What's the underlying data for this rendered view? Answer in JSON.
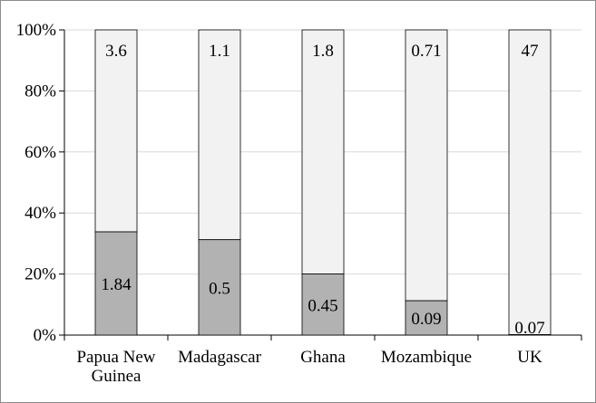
{
  "chart_data": {
    "type": "bar",
    "stacked": true,
    "normalized": true,
    "categories": [
      [
        "Papua New",
        "Guinea"
      ],
      [
        "Madagascar"
      ],
      [
        "Ghana"
      ],
      [
        "Mozambique"
      ],
      [
        "UK"
      ]
    ],
    "series": [
      {
        "values": [
          1.84,
          0.5,
          0.45,
          0.09,
          0.07
        ],
        "labels": [
          "1.84",
          "0.5",
          "0.45",
          "0.09",
          "0.07"
        ],
        "color": "#b2b2b2"
      },
      {
        "values": [
          3.6,
          1.1,
          1.8,
          0.71,
          47
        ],
        "labels": [
          "3.6",
          "1.1",
          "1.8",
          "0.71",
          "47"
        ],
        "color": "#f2f2f2"
      }
    ],
    "ytick_labels": [
      "0%",
      "20%",
      "40%",
      "60%",
      "80%",
      "100%"
    ],
    "ylim": [
      0,
      100
    ],
    "grid": true,
    "legend": "none",
    "colors": {
      "grid": "#d9d9d9",
      "axis": "#000000",
      "bar_edge": "#000000"
    }
  }
}
